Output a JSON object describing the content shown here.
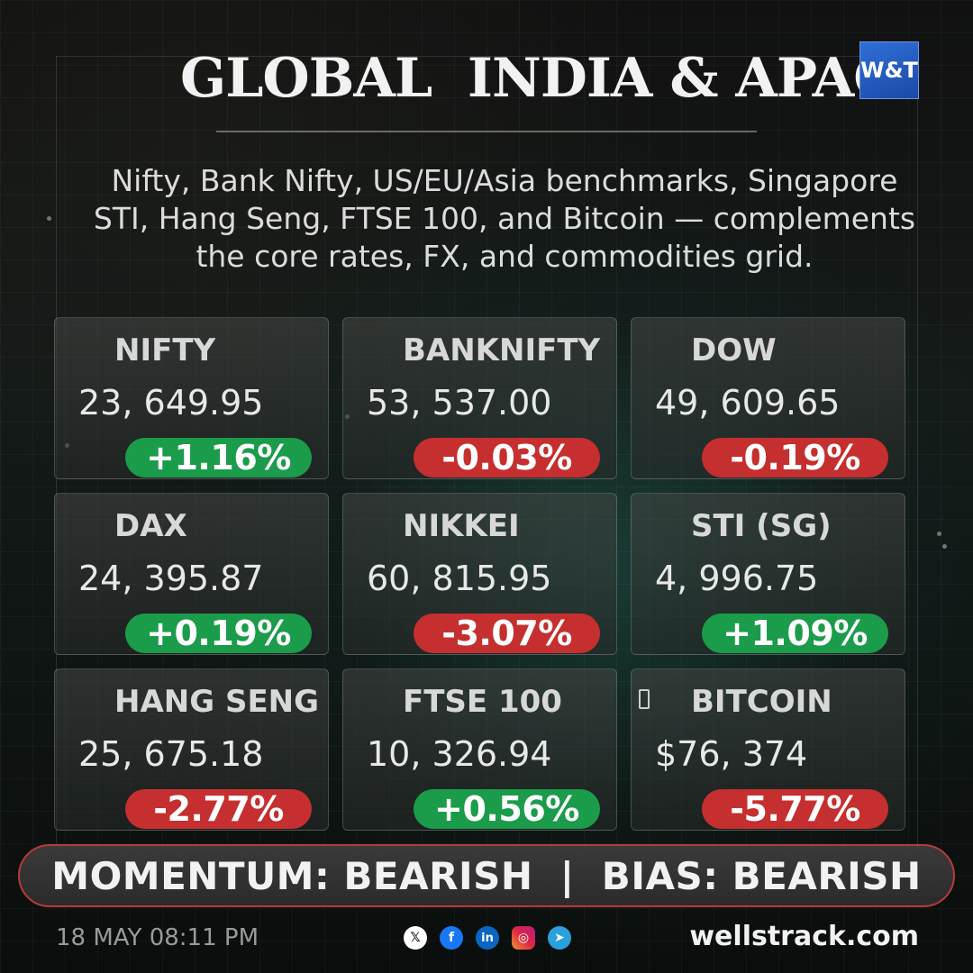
{
  "header": {
    "title": "GLOBAL  INDIA & APAC",
    "logo_text": "W&T",
    "subtitle_lines": [
      "Nifty, Bank Nifty, US/EU/Asia benchmarks, Singapore",
      "STI, Hang Seng, FTSE 100, and Bitcoin — complements",
      "the core rates, FX, and commodities grid."
    ]
  },
  "tiles": [
    {
      "name": "NIFTY",
      "value": "23, 649.95",
      "change": "+1.16%",
      "direction": "up"
    },
    {
      "name": "BANKNIFTY",
      "value": "53, 537.00",
      "change": "-0.03%",
      "direction": "down"
    },
    {
      "name": "DOW",
      "value": "49, 609.65",
      "change": "-0.19%",
      "direction": "down"
    },
    {
      "name": "DAX",
      "value": "24, 395.87",
      "change": "+0.19%",
      "direction": "up"
    },
    {
      "name": "NIKKEI",
      "value": "60, 815.95",
      "change": "-3.07%",
      "direction": "down"
    },
    {
      "name": "STI (SG)",
      "value": "4, 996.75",
      "change": "+1.09%",
      "direction": "up"
    },
    {
      "name": "HANG SENG",
      "value": "25, 675.18",
      "change": "-2.77%",
      "direction": "down"
    },
    {
      "name": "FTSE 100",
      "value": "10, 326.94",
      "change": "+0.56%",
      "direction": "up"
    },
    {
      "name": "BITCOIN",
      "value": "$76, 374",
      "change": "-5.77%",
      "direction": "down"
    }
  ],
  "banner": {
    "text": "MOMENTUM: BEARISH  |  BIAS: BEARISH"
  },
  "footer": {
    "datetime": "18 MAY 08:11 PM",
    "socials": [
      {
        "icon": "x-icon",
        "glyph": "𝕏"
      },
      {
        "icon": "facebook-icon",
        "glyph": "f"
      },
      {
        "icon": "linkedin-icon",
        "glyph": "in"
      },
      {
        "icon": "instagram-icon",
        "glyph": "◎"
      },
      {
        "icon": "telegram-icon",
        "glyph": "➤"
      }
    ],
    "website": "wellstrack.com"
  },
  "colors": {
    "up": "#1a9c4a",
    "down": "#c62f2f",
    "banner_border": "#b83a3a",
    "logo_blue": "#2f6fd6"
  }
}
